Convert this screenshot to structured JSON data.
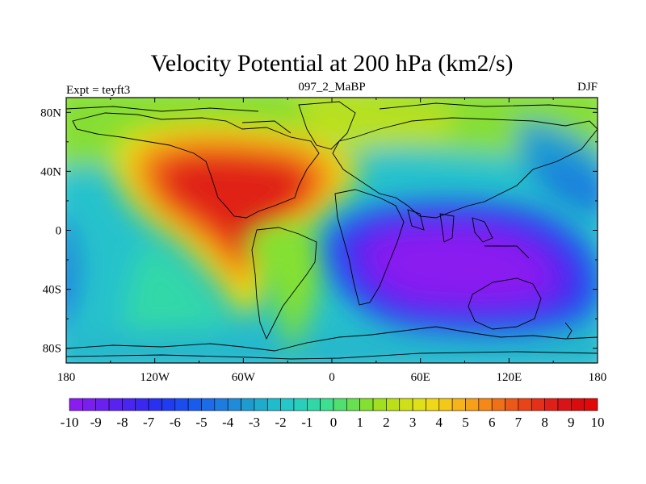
{
  "chart_data": {
    "type": "contour-map",
    "title": "Velocity Potential at 200 hPa (km2/s)",
    "left_string": "Expt = teyft3",
    "center_string": "097_2_MaBP",
    "right_string": "DJF",
    "x_ticks": [
      "180",
      "120W",
      "60W",
      "0",
      "60E",
      "120E",
      "180"
    ],
    "x_tick_values": [
      -180,
      -120,
      -60,
      0,
      60,
      120,
      180
    ],
    "y_ticks": [
      "80N",
      "40N",
      "0",
      "40S",
      "80S"
    ],
    "y_tick_values": [
      80,
      40,
      0,
      -40,
      -80
    ],
    "xlim": [
      -180,
      180
    ],
    "ylim": [
      -90,
      90
    ],
    "colorbar": {
      "levels": [
        -10,
        -9.5,
        -9,
        -8.5,
        -8,
        -7.5,
        -7,
        -6.5,
        -6,
        -5.5,
        -5,
        -4.5,
        -4,
        -3.5,
        -3,
        -2.5,
        -2,
        -1.5,
        -1,
        -0.5,
        0,
        0.5,
        1,
        1.5,
        2,
        2.5,
        3,
        3.5,
        4,
        4.5,
        5,
        5.5,
        6,
        6.5,
        7,
        7.5,
        8,
        8.5,
        9,
        9.5,
        10
      ],
      "labels": [
        "-10",
        "-9",
        "-8",
        "-7",
        "-6",
        "-5",
        "-4",
        "-3",
        "-2",
        "-1",
        "0",
        "1",
        "2",
        "3",
        "4",
        "5",
        "6",
        "7",
        "8",
        "9",
        "10"
      ],
      "colors": [
        "#8a1cf0",
        "#7a1ef0",
        "#6a20f0",
        "#5a22f0",
        "#4a24f0",
        "#3a28f0",
        "#2a30f0",
        "#1f3cf0",
        "#1a4cf0",
        "#185cee",
        "#1a6ce8",
        "#1d7ce0",
        "#1e8cd8",
        "#1e9cd0",
        "#1eaccc",
        "#20bccc",
        "#24c8c8",
        "#28d0bc",
        "#30d8a8",
        "#3ce090",
        "#50e070",
        "#68e050",
        "#84e030",
        "#a0e020",
        "#bce018",
        "#d0e018",
        "#e0e018",
        "#eed818",
        "#f4c818",
        "#f6b418",
        "#f6a018",
        "#f48818",
        "#f07018",
        "#ec5818",
        "#e84418",
        "#e43018",
        "#e02018",
        "#d81418",
        "#d80c0c",
        "#e00808"
      ]
    },
    "anomaly_centers": [
      {
        "name": "upper-divergence-center",
        "lon": -75,
        "lat": 25,
        "value": 10
      },
      {
        "name": "upper-convergence-center",
        "lon": 90,
        "lat": -25,
        "value": -10
      }
    ]
  }
}
